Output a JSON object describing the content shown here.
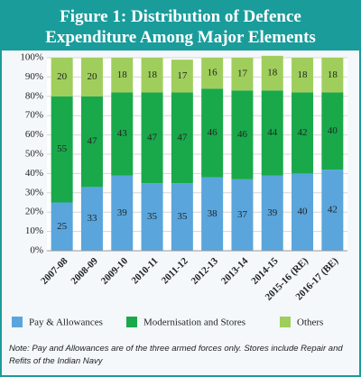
{
  "chart_data": {
    "type": "stacked_bar",
    "title": "Figure 1: Distribution of Defence Expenditure Among Major Elements",
    "categories": [
      "2007-08",
      "2008-09",
      "2009-10",
      "2010-11",
      "2011-12",
      "2012-13",
      "2013-14",
      "2014-15",
      "2015-16 (RE)",
      "2016-17 (BE)"
    ],
    "series": [
      {
        "name": "Pay & Allowances",
        "color": "#5aa5dc",
        "values": [
          25,
          33,
          39,
          35,
          35,
          38,
          37,
          39,
          40,
          42
        ]
      },
      {
        "name": "Modernisation and Stores",
        "color": "#19a94b",
        "values": [
          55,
          47,
          43,
          47,
          47,
          46,
          46,
          44,
          42,
          40
        ]
      },
      {
        "name": "Others",
        "color": "#9fce5c",
        "values": [
          20,
          20,
          18,
          18,
          17,
          16,
          17,
          18,
          18,
          18
        ]
      }
    ],
    "ylim": [
      0,
      100
    ],
    "yticks": [
      {
        "value": 0,
        "label": "0%"
      },
      {
        "value": 10,
        "label": "10%"
      },
      {
        "value": 20,
        "label": "20%"
      },
      {
        "value": 30,
        "label": "30%"
      },
      {
        "value": 40,
        "label": "40%"
      },
      {
        "value": 50,
        "label": "50%"
      },
      {
        "value": 60,
        "label": "60%"
      },
      {
        "value": 70,
        "label": "70%"
      },
      {
        "value": 80,
        "label": "80%"
      },
      {
        "value": 90,
        "label": "90%"
      },
      {
        "value": 100,
        "label": "100%"
      }
    ],
    "grid": true,
    "note": "Note: Pay and Allowances are of the three armed forces only. Stores include Repair and Refits of the Indian Navy"
  }
}
